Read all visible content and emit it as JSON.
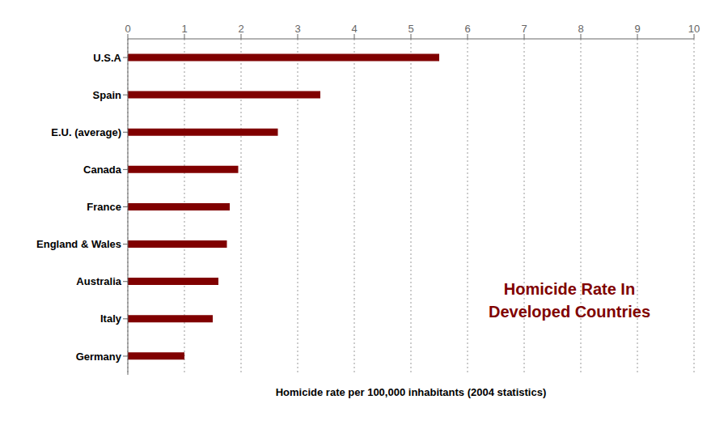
{
  "chart_data": {
    "type": "bar",
    "orientation": "horizontal",
    "categories": [
      "Germany",
      "Italy",
      "Australia",
      "England & Wales",
      "France",
      "Canada",
      "E.U. (average)",
      "Spain",
      "U.S.A"
    ],
    "values": [
      1.0,
      1.5,
      1.6,
      1.75,
      1.8,
      1.95,
      2.65,
      3.4,
      5.5
    ],
    "color": "#800000",
    "xlabel": "Homicide rate per 100,000 inhabitants (2004 statistics)",
    "annotation": "Homicide Rate In\nDeveloped Countries",
    "xlim": [
      0,
      10
    ],
    "xticks": [
      0,
      1,
      2,
      3,
      4,
      5,
      6,
      7,
      8,
      9,
      10
    ],
    "grid": true
  }
}
